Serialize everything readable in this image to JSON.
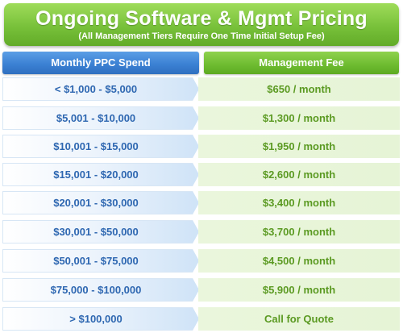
{
  "banner": {
    "title": "Ongoing Software & Mgmt Pricing",
    "subtitle": "(All Management Tiers Require One Time Initial Setup Fee)"
  },
  "headers": {
    "spend": "Monthly PPC Spend",
    "fee": "Management Fee"
  },
  "rows": [
    {
      "spend": "< $1,000 - $5,000",
      "fee": "$650 / month"
    },
    {
      "spend": "$5,001 - $10,000",
      "fee": "$1,300 / month"
    },
    {
      "spend": "$10,001 - $15,000",
      "fee": "$1,950 / month"
    },
    {
      "spend": "$15,001 - $20,000",
      "fee": "$2,600 / month"
    },
    {
      "spend": "$20,001 - $30,000",
      "fee": "$3,400 / month"
    },
    {
      "spend": "$30,001 - $50,000",
      "fee": "$3,700 / month"
    },
    {
      "spend": "$50,001 - $75,000",
      "fee": "$4,500 / month"
    },
    {
      "spend": "$75,000 - $100,000",
      "fee": "$5,900 / month"
    },
    {
      "spend": "> $100,000",
      "fee": "Call for Quote"
    }
  ],
  "colors": {
    "banner_green": "#78c13a",
    "header_blue": "#3a7fd2",
    "header_green": "#6dbb30",
    "spend_text": "#2e67b1",
    "fee_text": "#5b9a22"
  }
}
